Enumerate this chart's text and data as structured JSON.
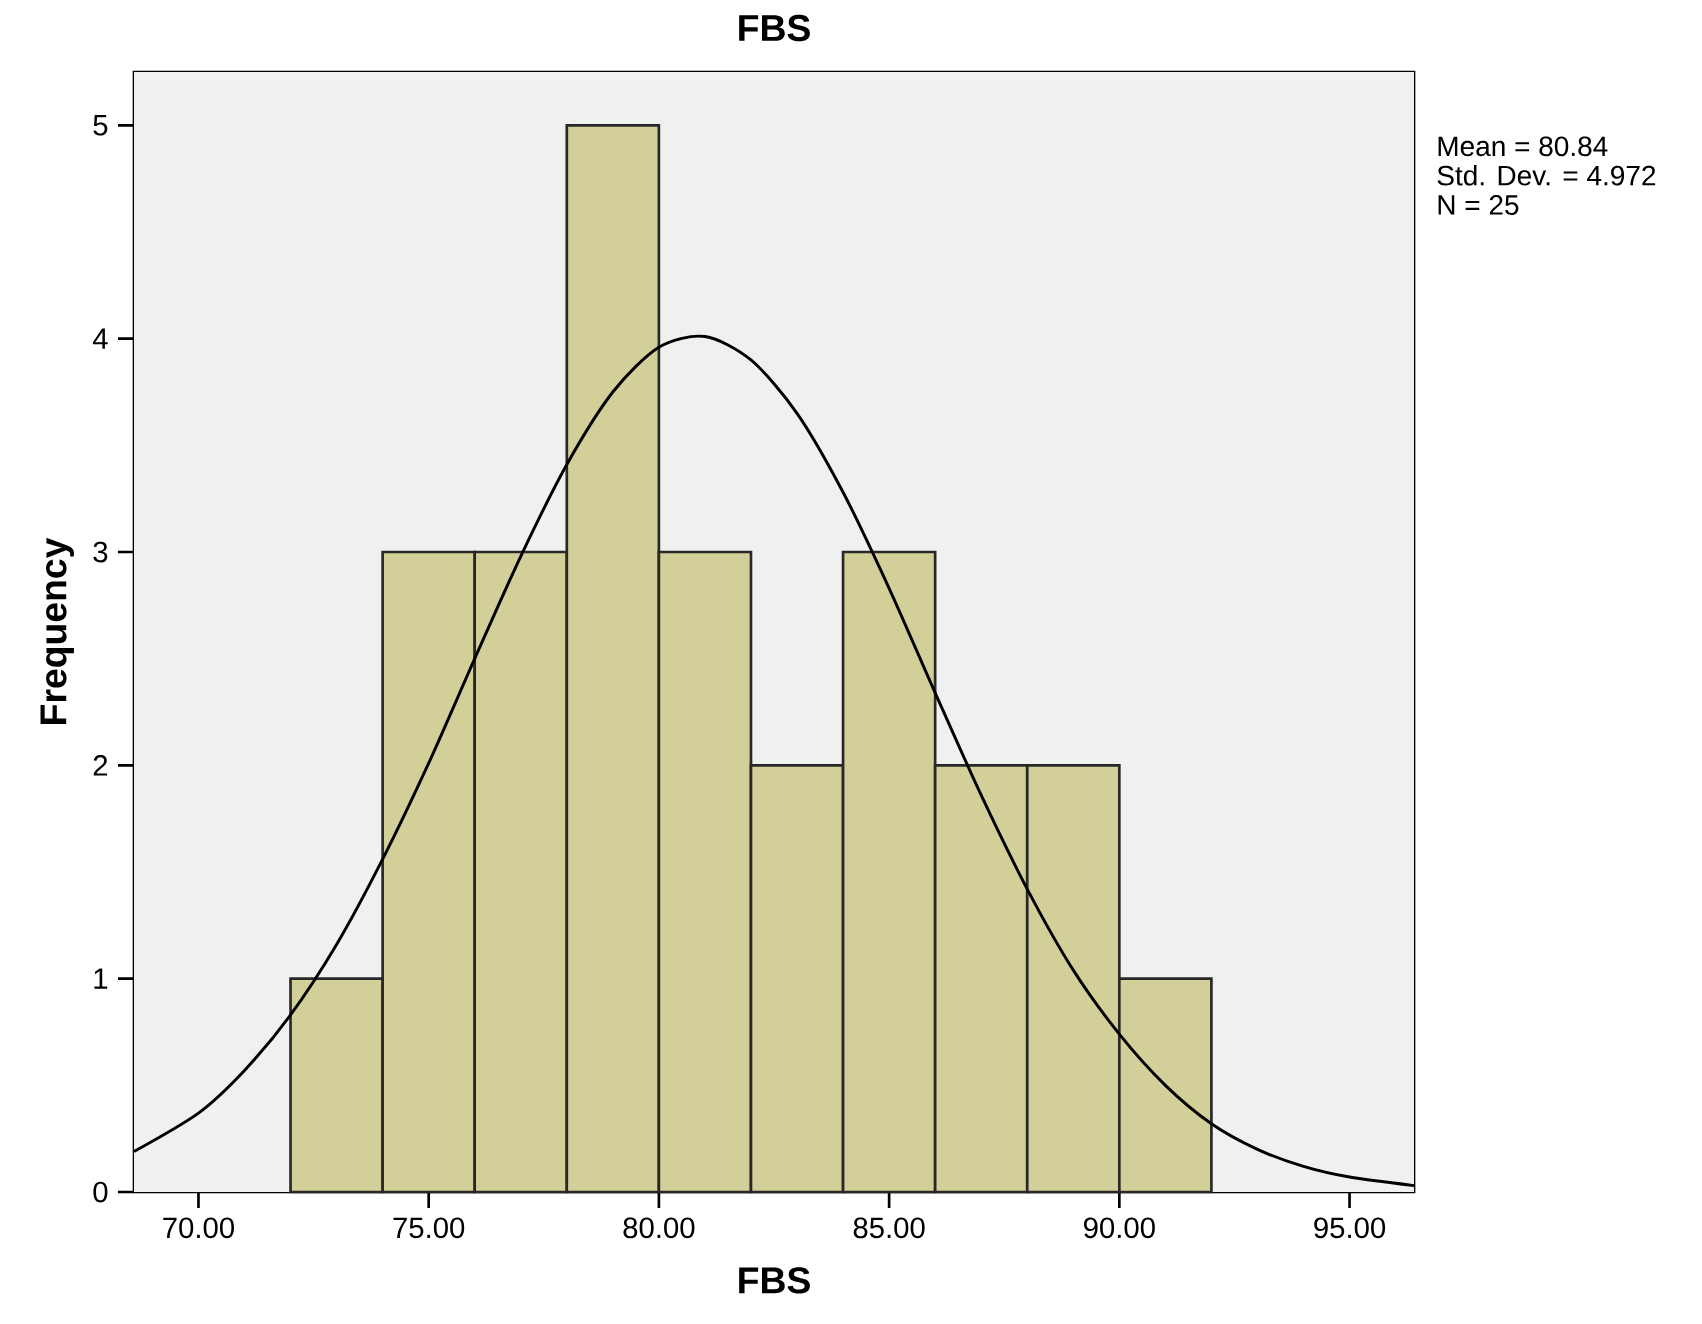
{
  "chart_data": {
    "type": "histogram",
    "title": "FBS",
    "xlabel": "FBS",
    "ylabel": "Frequency",
    "bins": [
      72,
      74,
      76,
      78,
      80,
      82,
      84,
      86,
      88,
      90,
      92
    ],
    "values": [
      1,
      3,
      3,
      5,
      3,
      2,
      3,
      2,
      2,
      1
    ],
    "color": "#d3cf99",
    "series": [
      {
        "type": "line",
        "color": "#000000",
        "x": [
          68.6,
          70,
          71,
          72,
          73,
          74,
          75,
          76,
          77,
          78,
          79,
          80,
          81,
          82,
          83,
          84,
          85,
          86,
          87,
          88,
          89,
          90,
          91,
          92,
          93,
          94,
          95,
          96.4
        ],
        "values": [
          0.19,
          0.37,
          0.57,
          0.83,
          1.16,
          1.56,
          2.01,
          2.5,
          2.98,
          3.41,
          3.75,
          3.96,
          4.01,
          3.9,
          3.65,
          3.28,
          2.83,
          2.34,
          1.86,
          1.42,
          1.04,
          0.74,
          0.5,
          0.32,
          0.2,
          0.12,
          0.07,
          0.03
        ]
      }
    ],
    "xlim": [
      68.6,
      96.4
    ],
    "ylim": [
      0,
      5.25
    ],
    "xticks": [
      {
        "value": 70,
        "label": "70.00"
      },
      {
        "value": 75,
        "label": "75.00"
      },
      {
        "value": 80,
        "label": "80.00"
      },
      {
        "value": 85,
        "label": "85.00"
      },
      {
        "value": 90,
        "label": "90.00"
      },
      {
        "value": 95,
        "label": "95.00"
      }
    ],
    "yticks": [
      0,
      1,
      2,
      3,
      4,
      5
    ],
    "marker": "none",
    "annotations": [
      "Mean = 80.84",
      "Std. Dev. = 4.972",
      "N = 25"
    ]
  }
}
